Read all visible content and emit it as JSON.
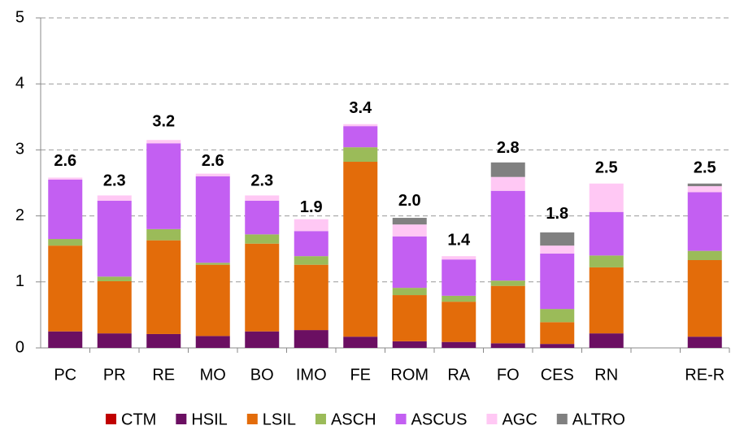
{
  "chart_data": {
    "type": "stacked_bar",
    "categories": [
      "PC",
      "PR",
      "RE",
      "MO",
      "BO",
      "IMO",
      "FE",
      "ROM",
      "RA",
      "FO",
      "CES",
      "RN",
      null,
      "RE-R"
    ],
    "series": [
      {
        "name": "CTM",
        "color": "#c00000",
        "values": [
          0,
          0,
          0,
          0,
          0,
          0,
          0,
          0,
          0,
          0,
          0,
          0,
          null,
          0
        ]
      },
      {
        "name": "HSIL",
        "color": "#6b0f62",
        "values": [
          0.25,
          0.22,
          0.21,
          0.18,
          0.25,
          0.27,
          0.17,
          0.1,
          0.09,
          0.07,
          0.06,
          0.22,
          null,
          0.17
        ]
      },
      {
        "name": "LSIL",
        "color": "#e36c0a",
        "values": [
          1.3,
          0.79,
          1.42,
          1.08,
          1.33,
          0.99,
          2.65,
          0.7,
          0.61,
          0.87,
          0.33,
          1.0,
          null,
          1.16
        ]
      },
      {
        "name": "ASCH",
        "color": "#9bbb59",
        "values": [
          0.1,
          0.07,
          0.17,
          0.03,
          0.14,
          0.13,
          0.22,
          0.11,
          0.09,
          0.08,
          0.2,
          0.18,
          null,
          0.14
        ]
      },
      {
        "name": "ASCUS",
        "color": "#c35ff2",
        "values": [
          0.9,
          1.15,
          1.3,
          1.31,
          0.51,
          0.38,
          0.32,
          0.78,
          0.55,
          1.36,
          0.84,
          0.66,
          null,
          0.89
        ]
      },
      {
        "name": "AGC",
        "color": "#ffc8f4",
        "values": [
          0.03,
          0.08,
          0.05,
          0.04,
          0.08,
          0.18,
          0.03,
          0.18,
          0.05,
          0.21,
          0.12,
          0.43,
          null,
          0.09
        ]
      },
      {
        "name": "ALTRO",
        "color": "#808080",
        "values": [
          0,
          0,
          0,
          0,
          0,
          0,
          0,
          0.1,
          0,
          0.22,
          0.2,
          0,
          null,
          0.04
        ]
      }
    ],
    "totals": {
      "values": [
        2.6,
        2.3,
        3.2,
        2.6,
        2.3,
        1.9,
        3.4,
        2.0,
        1.4,
        2.8,
        1.8,
        2.5,
        null,
        2.5
      ],
      "value_labels": [
        "2.6",
        "2.3",
        "3.2",
        "2.6",
        "2.3",
        "1.9",
        "3.4",
        "2.0",
        "1.4",
        "2.8",
        "1.8",
        "2.5",
        null,
        "2.5"
      ]
    },
    "ylim": [
      0,
      5
    ],
    "yticks": [
      0,
      1,
      2,
      3,
      4,
      5
    ],
    "grid": true,
    "legend": "bottom"
  }
}
